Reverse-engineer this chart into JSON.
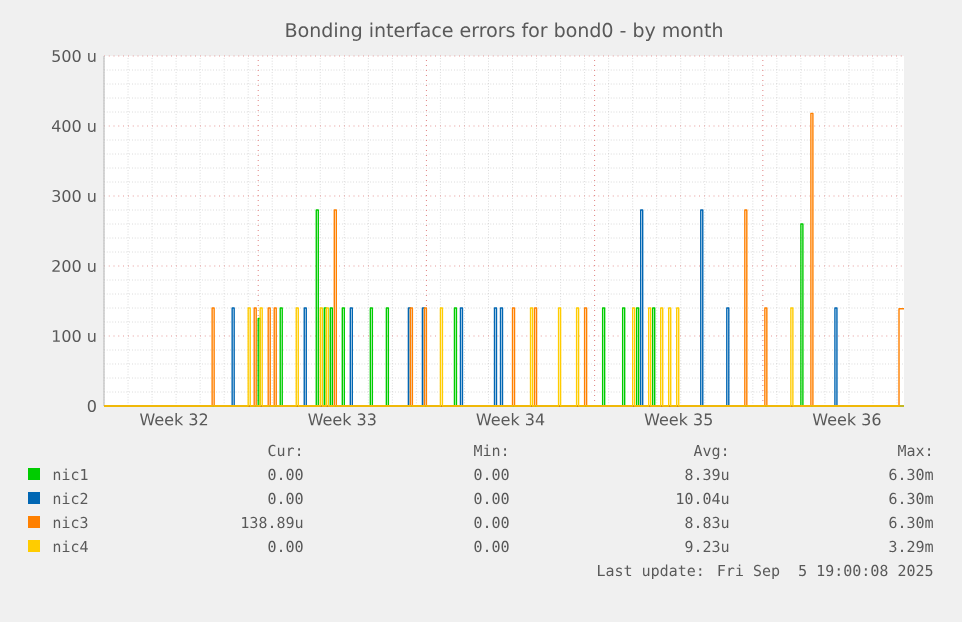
{
  "chart_data": {
    "type": "line",
    "title": "Bonding interface errors for bond0 - by month",
    "xlim": [
      "2025-08-03T14:00",
      "2025-09-05T21:00"
    ],
    "xticks": [
      {
        "value": "2025-08-06T12:00",
        "label": "Week 32"
      },
      {
        "value": "2025-08-10T00:00",
        "label": null
      },
      {
        "value": "2025-08-13T12:00",
        "label": "Week 33"
      },
      {
        "value": "2025-08-17T00:00",
        "label": null
      },
      {
        "value": "2025-08-20T12:00",
        "label": "Week 34"
      },
      {
        "value": "2025-08-24T00:00",
        "label": null
      },
      {
        "value": "2025-08-27T12:00",
        "label": "Week 35"
      },
      {
        "value": "2025-08-31T00:00",
        "label": null
      },
      {
        "value": "2025-09-03T12:00",
        "label": "Week 36"
      }
    ],
    "ylim": [
      0,
      500
    ],
    "yticks": [
      0,
      {
        "value": 100,
        "label": "100 u"
      },
      {
        "value": 200,
        "label": "200 u"
      },
      {
        "value": 300,
        "label": "300 u"
      },
      {
        "value": 400,
        "label": "400 u"
      },
      {
        "value": 500,
        "label": "500 u"
      }
    ],
    "grid": true,
    "legend": "bottom",
    "marker": "none",
    "line_style": "solid",
    "series": [
      {
        "name": "nic1",
        "color": "#00cc00",
        "x": [
          "2025-08-03T14:00",
          "2025-08-10T00:00",
          "2025-08-10T00:00",
          "2025-08-10T02:00",
          "2025-08-10T02:00",
          "2025-08-10T22:00",
          "2025-08-10T22:00",
          "2025-08-11T00:00",
          "2025-08-11T00:00",
          "2025-08-12T10:00",
          "2025-08-12T10:00",
          "2025-08-12T12:00",
          "2025-08-12T12:00",
          "2025-08-12T18:00",
          "2025-08-12T18:00",
          "2025-08-12T20:00",
          "2025-08-12T20:00",
          "2025-08-13T00:00",
          "2025-08-13T00:00",
          "2025-08-13T02:00",
          "2025-08-13T02:00",
          "2025-08-13T12:00",
          "2025-08-13T12:00",
          "2025-08-13T14:00",
          "2025-08-13T14:00",
          "2025-08-14T16:00",
          "2025-08-14T16:00",
          "2025-08-14T18:00",
          "2025-08-14T18:00",
          "2025-08-15T08:00",
          "2025-08-15T08:00",
          "2025-08-15T10:00",
          "2025-08-15T10:00",
          "2025-08-18T04:00",
          "2025-08-18T04:00",
          "2025-08-18T06:00",
          "2025-08-18T06:00",
          "2025-08-24T08:00",
          "2025-08-24T08:00",
          "2025-08-24T10:00",
          "2025-08-24T10:00",
          "2025-08-25T04:00",
          "2025-08-25T04:00",
          "2025-08-25T06:00",
          "2025-08-25T06:00",
          "2025-08-25T18:00",
          "2025-08-25T18:00",
          "2025-08-25T20:00",
          "2025-08-25T20:00",
          "2025-08-26T10:00",
          "2025-08-26T10:00",
          "2025-08-26T12:00",
          "2025-08-26T12:00",
          "2025-09-01T14:00",
          "2025-09-01T14:00",
          "2025-09-01T16:00",
          "2025-09-01T16:00",
          "2025-09-05T21:00"
        ],
        "values": [
          0,
          0,
          125,
          125,
          0,
          0,
          140,
          140,
          0,
          0,
          280,
          280,
          0,
          0,
          140,
          140,
          0,
          0,
          140,
          140,
          0,
          0,
          140,
          140,
          0,
          0,
          140,
          140,
          0,
          0,
          140,
          140,
          0,
          0,
          140,
          140,
          0,
          0,
          140,
          140,
          0,
          0,
          140,
          140,
          0,
          0,
          140,
          140,
          0,
          0,
          140,
          140,
          0,
          0,
          260,
          260,
          0,
          0
        ]
      },
      {
        "name": "nic2",
        "color": "#0066b3",
        "x": [
          "2025-08-03T14:00",
          "2025-08-08T22:00",
          "2025-08-08T22:00",
          "2025-08-09T00:00",
          "2025-08-09T00:00",
          "2025-08-11T22:00",
          "2025-08-11T22:00",
          "2025-08-12T00:00",
          "2025-08-12T00:00",
          "2025-08-13T20:00",
          "2025-08-13T20:00",
          "2025-08-13T22:00",
          "2025-08-13T22:00",
          "2025-08-16T06:00",
          "2025-08-16T06:00",
          "2025-08-16T08:00",
          "2025-08-16T08:00",
          "2025-08-16T20:00",
          "2025-08-16T20:00",
          "2025-08-16T22:00",
          "2025-08-16T22:00",
          "2025-08-18T10:00",
          "2025-08-18T10:00",
          "2025-08-18T12:00",
          "2025-08-18T12:00",
          "2025-08-19T20:00",
          "2025-08-19T20:00",
          "2025-08-19T22:00",
          "2025-08-19T22:00",
          "2025-08-20T02:00",
          "2025-08-20T02:00",
          "2025-08-20T04:00",
          "2025-08-20T04:00",
          "2025-08-25T22:00",
          "2025-08-25T22:00",
          "2025-08-26T00:00",
          "2025-08-26T00:00",
          "2025-08-28T10:00",
          "2025-08-28T10:00",
          "2025-08-28T12:00",
          "2025-08-28T12:00",
          "2025-08-29T12:00",
          "2025-08-29T12:00",
          "2025-08-29T14:00",
          "2025-08-29T14:00",
          "2025-09-03T00:00",
          "2025-09-03T00:00",
          "2025-09-03T02:00",
          "2025-09-03T02:00",
          "2025-09-05T21:00"
        ],
        "values": [
          0,
          0,
          140,
          140,
          0,
          0,
          140,
          140,
          0,
          0,
          140,
          140,
          0,
          0,
          140,
          140,
          0,
          0,
          140,
          140,
          0,
          0,
          140,
          140,
          0,
          0,
          140,
          140,
          0,
          0,
          140,
          140,
          0,
          0,
          280,
          280,
          0,
          0,
          280,
          280,
          0,
          0,
          140,
          140,
          0,
          0,
          140,
          140,
          0,
          0
        ]
      },
      {
        "name": "nic3",
        "color": "#ff8000",
        "x": [
          "2025-08-03T14:00",
          "2025-08-08T02:00",
          "2025-08-08T02:00",
          "2025-08-08T04:00",
          "2025-08-08T04:00",
          "2025-08-09T20:00",
          "2025-08-09T20:00",
          "2025-08-09T22:00",
          "2025-08-09T22:00",
          "2025-08-10T10:00",
          "2025-08-10T10:00",
          "2025-08-10T12:00",
          "2025-08-10T12:00",
          "2025-08-10T16:00",
          "2025-08-10T16:00",
          "2025-08-10T18:00",
          "2025-08-10T18:00",
          "2025-08-13T04:00",
          "2025-08-13T04:00",
          "2025-08-13T06:00",
          "2025-08-13T06:00",
          "2025-08-16T08:00",
          "2025-08-16T08:00",
          "2025-08-16T10:00",
          "2025-08-16T10:00",
          "2025-08-16T22:00",
          "2025-08-16T22:00",
          "2025-08-17T00:00",
          "2025-08-17T00:00",
          "2025-08-20T14:00",
          "2025-08-20T14:00",
          "2025-08-20T16:00",
          "2025-08-20T16:00",
          "2025-08-21T12:00",
          "2025-08-21T12:00",
          "2025-08-21T14:00",
          "2025-08-21T14:00",
          "2025-08-23T14:00",
          "2025-08-23T14:00",
          "2025-08-23T16:00",
          "2025-08-23T16:00",
          "2025-08-30T06:00",
          "2025-08-30T06:00",
          "2025-08-30T08:00",
          "2025-08-30T08:00",
          "2025-08-31T02:00",
          "2025-08-31T02:00",
          "2025-08-31T04:00",
          "2025-08-31T04:00",
          "2025-09-02T00:00",
          "2025-09-02T00:00",
          "2025-09-02T02:00",
          "2025-09-02T02:00",
          "2025-09-05T16:00",
          "2025-09-05T16:00",
          "2025-09-05T21:00"
        ],
        "values": [
          0,
          0,
          140,
          140,
          0,
          0,
          140,
          140,
          0,
          0,
          140,
          140,
          0,
          0,
          140,
          140,
          0,
          0,
          280,
          280,
          0,
          0,
          140,
          140,
          0,
          0,
          140,
          140,
          0,
          0,
          140,
          140,
          0,
          0,
          140,
          140,
          0,
          0,
          140,
          140,
          0,
          0,
          280,
          280,
          0,
          0,
          140,
          140,
          0,
          0,
          418,
          418,
          0,
          0,
          139,
          139
        ]
      },
      {
        "name": "nic4",
        "color": "#ffcc00",
        "x": [
          "2025-08-03T14:00",
          "2025-08-09T14:00",
          "2025-08-09T14:00",
          "2025-08-09T16:00",
          "2025-08-09T16:00",
          "2025-08-10T02:00",
          "2025-08-10T02:00",
          "2025-08-10T04:00",
          "2025-08-10T04:00",
          "2025-08-11T14:00",
          "2025-08-11T14:00",
          "2025-08-11T16:00",
          "2025-08-11T16:00",
          "2025-08-12T14:00",
          "2025-08-12T14:00",
          "2025-08-12T16:00",
          "2025-08-12T16:00",
          "2025-08-12T20:00",
          "2025-08-12T20:00",
          "2025-08-12T22:00",
          "2025-08-12T22:00",
          "2025-08-17T14:00",
          "2025-08-17T14:00",
          "2025-08-17T16:00",
          "2025-08-17T16:00",
          "2025-08-21T08:00",
          "2025-08-21T08:00",
          "2025-08-21T10:00",
          "2025-08-21T10:00",
          "2025-08-22T12:00",
          "2025-08-22T12:00",
          "2025-08-22T14:00",
          "2025-08-22T14:00",
          "2025-08-23T06:00",
          "2025-08-23T06:00",
          "2025-08-23T08:00",
          "2025-08-23T08:00",
          "2025-08-25T14:00",
          "2025-08-25T14:00",
          "2025-08-25T16:00",
          "2025-08-25T16:00",
          "2025-08-26T06:00",
          "2025-08-26T06:00",
          "2025-08-26T08:00",
          "2025-08-26T08:00",
          "2025-08-26T18:00",
          "2025-08-26T18:00",
          "2025-08-26T20:00",
          "2025-08-26T20:00",
          "2025-08-27T02:00",
          "2025-08-27T02:00",
          "2025-08-27T04:00",
          "2025-08-27T04:00",
          "2025-08-27T10:00",
          "2025-08-27T10:00",
          "2025-08-27T12:00",
          "2025-08-27T12:00",
          "2025-09-01T04:00",
          "2025-09-01T04:00",
          "2025-09-01T06:00",
          "2025-09-01T06:00",
          "2025-09-05T21:00"
        ],
        "values": [
          0,
          0,
          140,
          140,
          0,
          0,
          140,
          140,
          0,
          0,
          140,
          140,
          0,
          0,
          140,
          140,
          0,
          0,
          140,
          140,
          0,
          0,
          140,
          140,
          0,
          0,
          140,
          140,
          0,
          0,
          140,
          140,
          0,
          0,
          140,
          140,
          0,
          0,
          140,
          140,
          0,
          0,
          140,
          140,
          0,
          0,
          140,
          140,
          0,
          0,
          140,
          140,
          0,
          0,
          140,
          140,
          0,
          0,
          140,
          140,
          0,
          0
        ]
      }
    ],
    "annotations": [
      "Cur:",
      "Min:",
      "Avg:",
      "Max:",
      "0.00",
      "0.00",
      "8.39u",
      "6.30m",
      "0.00",
      "0.00",
      "10.04u",
      "6.30m",
      "138.89u",
      "0.00",
      "8.83u",
      "6.30m",
      "0.00",
      "0.00",
      "9.23u",
      "3.29m",
      "Last update: Fri Sep  5 19:00:08 2025"
    ]
  }
}
